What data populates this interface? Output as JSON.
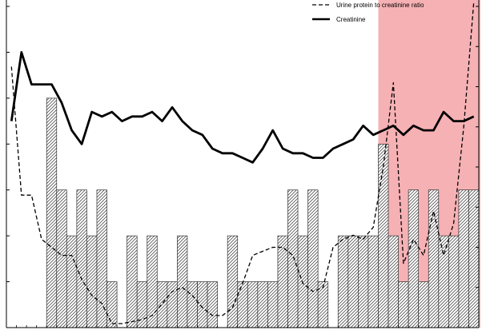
{
  "chart_data": {
    "type": "bar",
    "title": "",
    "xlabel": "",
    "ylabel": "",
    "grid": false,
    "legend_placement": "top-right",
    "x_count": 47,
    "y_left_lim": [
      0,
      7
    ],
    "y_right_lim": [
      0,
      8
    ],
    "colors": {
      "highlight": "#f4a3a7",
      "bar_stroke": "#333333",
      "line": "#000000"
    },
    "highlight_range": [
      36.5,
      46.5
    ],
    "series": [
      {
        "name": "",
        "type": "bar",
        "axis": "left",
        "values": [
          0,
          0,
          0,
          0,
          5,
          3,
          2,
          3,
          2,
          3,
          1,
          0,
          2,
          1,
          2,
          1,
          1,
          2,
          1,
          1,
          1,
          0,
          2,
          1,
          1,
          1,
          1,
          2,
          3,
          2,
          3,
          1,
          0,
          2,
          2,
          2,
          2,
          4,
          2,
          1,
          3,
          1,
          3,
          2,
          2,
          3,
          3
        ]
      },
      {
        "name": "Urine protein to creatinine ratio",
        "type": "line",
        "style": "dashed",
        "axis": "right",
        "values": [
          6.5,
          3.3,
          3.3,
          2.2,
          2.0,
          1.8,
          1.8,
          1.2,
          0.8,
          0.6,
          0.1,
          0.1,
          0.15,
          0.2,
          0.3,
          0.6,
          0.9,
          1.0,
          0.8,
          0.5,
          0.3,
          0.3,
          0.5,
          1.1,
          1.8,
          1.9,
          2.0,
          2.0,
          1.8,
          1.1,
          0.9,
          1.0,
          2.0,
          2.2,
          2.3,
          2.2,
          2.5,
          4.0,
          6.1,
          1.6,
          2.2,
          1.8,
          2.9,
          1.8,
          2.6,
          5.0,
          8.1
        ]
      },
      {
        "name": "Creatinine",
        "type": "line",
        "style": "solid",
        "axis": "left",
        "values": [
          4.5,
          6.0,
          5.3,
          5.3,
          5.3,
          4.9,
          4.3,
          4.0,
          4.7,
          4.6,
          4.7,
          4.5,
          4.6,
          4.6,
          4.7,
          4.5,
          4.8,
          4.5,
          4.3,
          4.2,
          3.9,
          3.8,
          3.8,
          3.7,
          3.6,
          3.9,
          4.3,
          3.9,
          3.8,
          3.8,
          3.7,
          3.7,
          3.9,
          4.0,
          4.1,
          4.4,
          4.2,
          4.3,
          4.4,
          4.2,
          4.4,
          4.3,
          4.3,
          4.7,
          4.5,
          4.5,
          4.6
        ]
      }
    ],
    "legend": [
      {
        "label": "Urine protein to creatinine ratio",
        "style": "dashed"
      },
      {
        "label": "Creatinine",
        "style": "solid"
      }
    ]
  }
}
